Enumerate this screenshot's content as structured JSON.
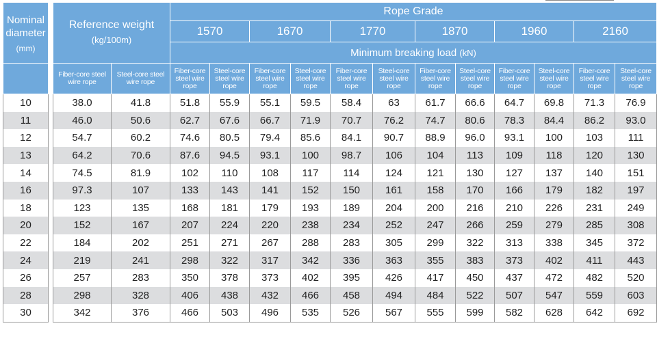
{
  "header": {
    "nominal_label_1": "Nominal",
    "nominal_label_2": "diameter",
    "nominal_unit": "(mm)",
    "ref_title": "Reference weight",
    "ref_unit": "(kg/100m)",
    "ref_fiber": "Fiber-core steel wire rope",
    "ref_steel": "Steel-core steel wire rope",
    "rope_grade": "Rope Grade",
    "grades": [
      "1570",
      "1670",
      "1770",
      "1870",
      "1960",
      "2160"
    ],
    "mbl_label": "Minimum breaking load",
    "mbl_unit": "(kN)",
    "sub_fiber": "Fiber-core steel wire rope",
    "sub_steel": "Steel-core steel wire rope"
  },
  "rows": [
    [
      "10",
      "38.0",
      "41.8",
      "51.8",
      "55.9",
      "55.1",
      "59.5",
      "58.4",
      "63",
      "61.7",
      "66.6",
      "64.7",
      "69.8",
      "71.3",
      "76.9"
    ],
    [
      "11",
      "46.0",
      "50.6",
      "62.7",
      "67.6",
      "66.7",
      "71.9",
      "70.7",
      "76.2",
      "74.7",
      "80.6",
      "78.3",
      "84.4",
      "86.2",
      "93.0"
    ],
    [
      "12",
      "54.7",
      "60.2",
      "74.6",
      "80.5",
      "79.4",
      "85.6",
      "84.1",
      "90.7",
      "88.9",
      "96.0",
      "93.1",
      "100",
      "103",
      "111"
    ],
    [
      "13",
      "64.2",
      "70.6",
      "87.6",
      "94.5",
      "93.1",
      "100",
      "98.7",
      "106",
      "104",
      "113",
      "109",
      "118",
      "120",
      "130"
    ],
    [
      "14",
      "74.5",
      "81.9",
      "102",
      "110",
      "108",
      "117",
      "114",
      "124",
      "121",
      "130",
      "127",
      "137",
      "140",
      "151"
    ],
    [
      "16",
      "97.3",
      "107",
      "133",
      "143",
      "141",
      "152",
      "150",
      "161",
      "158",
      "170",
      "166",
      "179",
      "182",
      "197"
    ],
    [
      "18",
      "123",
      "135",
      "168",
      "181",
      "179",
      "193",
      "189",
      "204",
      "200",
      "216",
      "210",
      "226",
      "231",
      "249"
    ],
    [
      "20",
      "152",
      "167",
      "207",
      "224",
      "220",
      "238",
      "234",
      "252",
      "247",
      "266",
      "259",
      "279",
      "285",
      "308"
    ],
    [
      "22",
      "184",
      "202",
      "251",
      "271",
      "267",
      "288",
      "283",
      "305",
      "299",
      "322",
      "313",
      "338",
      "345",
      "372"
    ],
    [
      "24",
      "219",
      "241",
      "298",
      "322",
      "317",
      "342",
      "336",
      "363",
      "355",
      "383",
      "373",
      "402",
      "411",
      "443"
    ],
    [
      "26",
      "257",
      "283",
      "350",
      "378",
      "373",
      "402",
      "395",
      "426",
      "417",
      "450",
      "437",
      "472",
      "482",
      "520"
    ],
    [
      "28",
      "298",
      "328",
      "406",
      "438",
      "432",
      "466",
      "458",
      "494",
      "484",
      "522",
      "507",
      "547",
      "559",
      "603"
    ],
    [
      "30",
      "342",
      "376",
      "466",
      "503",
      "496",
      "535",
      "526",
      "567",
      "555",
      "599",
      "582",
      "628",
      "642",
      "692"
    ]
  ]
}
